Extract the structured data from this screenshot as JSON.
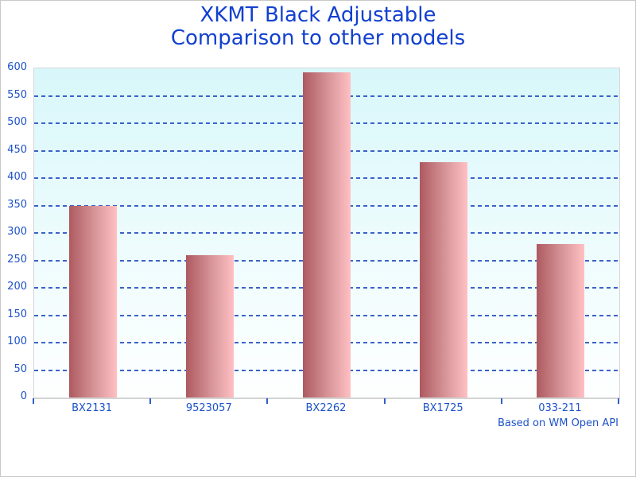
{
  "chart_data": {
    "type": "bar",
    "title_lines": [
      "XKMT Black Adjustable",
      "Comparison to other models"
    ],
    "categories": [
      "BX2131",
      "9523057",
      "BX2262",
      "BX1725",
      "033-211"
    ],
    "values": [
      350,
      260,
      593,
      429,
      280
    ],
    "xlabel": "",
    "ylabel": "",
    "ylim": [
      0,
      600
    ],
    "y_tick_step": 50,
    "y_ticks": [
      0,
      50,
      100,
      150,
      200,
      250,
      300,
      350,
      400,
      450,
      500,
      550,
      600
    ],
    "grid": "horizontal-dashed",
    "legend": "none",
    "footer": "Based on WM Open API",
    "colors": {
      "title_text": "#1240d0",
      "axis_text": "#1d52c8",
      "gridline": "#3a63c9",
      "tick_mark": "#2e5fc9",
      "bar_gradient_left": "#ad5a60",
      "bar_gradient_right": "#ffc0c3",
      "plot_bg_top": "#d8f7fa",
      "plot_bg_bottom": "#feffff",
      "axis_line": "#d4d4d4",
      "page_border": "#c8c8c8"
    }
  }
}
